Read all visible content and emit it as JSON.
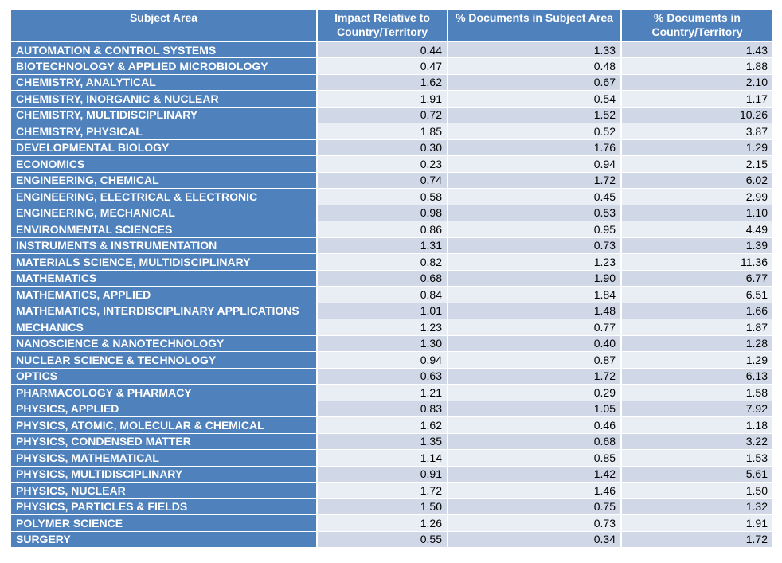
{
  "table": {
    "headers": [
      "Subject Area",
      "Impact Relative to Country/Territory",
      "% Documents in Subject Area",
      "% Documents in Country/Territory"
    ],
    "rows": [
      [
        "AUTOMATION & CONTROL SYSTEMS",
        "0.44",
        "1.33",
        "1.43"
      ],
      [
        "BIOTECHNOLOGY & APPLIED MICROBIOLOGY",
        "0.47",
        "0.48",
        "1.88"
      ],
      [
        "CHEMISTRY, ANALYTICAL",
        "1.62",
        "0.67",
        "2.10"
      ],
      [
        "CHEMISTRY, INORGANIC & NUCLEAR",
        "1.91",
        "0.54",
        "1.17"
      ],
      [
        "CHEMISTRY, MULTIDISCIPLINARY",
        "0.72",
        "1.52",
        "10.26"
      ],
      [
        "CHEMISTRY, PHYSICAL",
        "1.85",
        "0.52",
        "3.87"
      ],
      [
        "DEVELOPMENTAL BIOLOGY",
        "0.30",
        "1.76",
        "1.29"
      ],
      [
        "ECONOMICS",
        "0.23",
        "0.94",
        "2.15"
      ],
      [
        "ENGINEERING, CHEMICAL",
        "0.74",
        "1.72",
        "6.02"
      ],
      [
        "ENGINEERING, ELECTRICAL & ELECTRONIC",
        "0.58",
        "0.45",
        "2.99"
      ],
      [
        "ENGINEERING, MECHANICAL",
        "0.98",
        "0.53",
        "1.10"
      ],
      [
        "ENVIRONMENTAL SCIENCES",
        "0.86",
        "0.95",
        "4.49"
      ],
      [
        "INSTRUMENTS & INSTRUMENTATION",
        "1.31",
        "0.73",
        "1.39"
      ],
      [
        "MATERIALS SCIENCE, MULTIDISCIPLINARY",
        "0.82",
        "1.23",
        "11.36"
      ],
      [
        "MATHEMATICS",
        "0.68",
        "1.90",
        "6.77"
      ],
      [
        "MATHEMATICS, APPLIED",
        "0.84",
        "1.84",
        "6.51"
      ],
      [
        "MATHEMATICS, INTERDISCIPLINARY APPLICATIONS",
        "1.01",
        "1.48",
        "1.66"
      ],
      [
        "MECHANICS",
        "1.23",
        "0.77",
        "1.87"
      ],
      [
        "NANOSCIENCE & NANOTECHNOLOGY",
        "1.30",
        "0.40",
        "1.28"
      ],
      [
        "NUCLEAR SCIENCE & TECHNOLOGY",
        "0.94",
        "0.87",
        "1.29"
      ],
      [
        "OPTICS",
        "0.63",
        "1.72",
        "6.13"
      ],
      [
        "PHARMACOLOGY & PHARMACY",
        "1.21",
        "0.29",
        "1.58"
      ],
      [
        "PHYSICS, APPLIED",
        "0.83",
        "1.05",
        "7.92"
      ],
      [
        "PHYSICS, ATOMIC, MOLECULAR & CHEMICAL",
        "1.62",
        "0.46",
        "1.18"
      ],
      [
        "PHYSICS, CONDENSED MATTER",
        "1.35",
        "0.68",
        "3.22"
      ],
      [
        "PHYSICS, MATHEMATICAL",
        "1.14",
        "0.85",
        "1.53"
      ],
      [
        "PHYSICS, MULTIDISCIPLINARY",
        "0.91",
        "1.42",
        "5.61"
      ],
      [
        "PHYSICS, NUCLEAR",
        "1.72",
        "1.46",
        "1.50"
      ],
      [
        "PHYSICS, PARTICLES & FIELDS",
        "1.50",
        "0.75",
        "1.32"
      ],
      [
        "POLYMER SCIENCE",
        "1.26",
        "0.73",
        "1.91"
      ],
      [
        "SURGERY",
        "0.55",
        "0.34",
        "1.72"
      ]
    ]
  },
  "colors": {
    "header_bg": "#4f81bd",
    "header_text": "#ffffff",
    "row_odd_bg": "#d0d8e8",
    "row_even_bg": "#e9edf4",
    "cell_text": "#000000"
  }
}
